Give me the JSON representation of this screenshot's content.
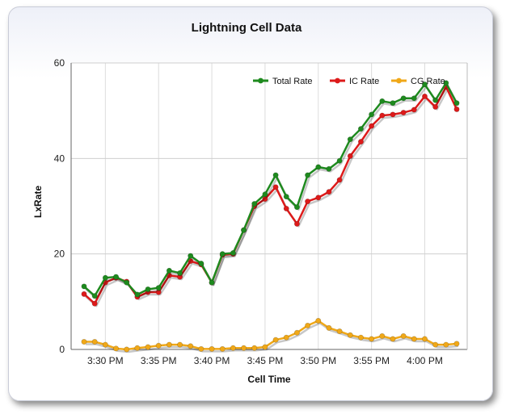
{
  "chart_data": {
    "type": "line",
    "title": "Lightning Cell Data",
    "xlabel": "Cell Time",
    "ylabel": "LxRate",
    "ylim": [
      0,
      60
    ],
    "yticks": [
      "0",
      "20",
      "40",
      "60"
    ],
    "xticks": [
      "3:30 PM",
      "3:35 PM",
      "3:40 PM",
      "3:45 PM",
      "3:50 PM",
      "3:55 PM",
      "4:00 PM"
    ],
    "grid": true,
    "legend_position": "top-right",
    "x": [
      "3:28 PM",
      "3:29 PM",
      "3:30 PM",
      "3:31 PM",
      "3:32 PM",
      "3:33 PM",
      "3:34 PM",
      "3:35 PM",
      "3:36 PM",
      "3:37 PM",
      "3:38 PM",
      "3:39 PM",
      "3:40 PM",
      "3:41 PM",
      "3:42 PM",
      "3:43 PM",
      "3:44 PM",
      "3:45 PM",
      "3:46 PM",
      "3:47 PM",
      "3:48 PM",
      "3:49 PM",
      "3:50 PM",
      "3:51 PM",
      "3:52 PM",
      "3:53 PM",
      "3:54 PM",
      "3:55 PM",
      "3:56 PM",
      "3:57 PM",
      "3:58 PM",
      "3:59 PM",
      "4:00 PM",
      "4:01 PM",
      "4:02 PM",
      "4:03 PM"
    ],
    "series": [
      {
        "name": "Total Rate",
        "color": "#1e8a1e",
        "values": [
          13.2,
          11.2,
          15,
          15.2,
          14,
          11.5,
          12.6,
          12.9,
          16.5,
          16,
          19.6,
          18,
          14,
          20,
          20.2,
          25,
          30.5,
          32.5,
          36.5,
          32,
          29.8,
          36.5,
          38.2,
          37.8,
          39.5,
          44,
          46.2,
          49.2,
          52,
          51.6,
          52.6,
          52.6,
          55.5,
          52.2,
          55.8,
          51.6
        ]
      },
      {
        "name": "IC Rate",
        "color": "#dd1a1a",
        "values": [
          11.6,
          9.6,
          14,
          15,
          14.2,
          11,
          12,
          12,
          15.5,
          15.2,
          18.5,
          17.8,
          14,
          19.8,
          20,
          25,
          30,
          31.5,
          34,
          29.5,
          26.3,
          31,
          31.8,
          33,
          35.5,
          40.5,
          43.5,
          46.8,
          49,
          49.2,
          49.6,
          50.2,
          53,
          50.8,
          55,
          50.3
        ]
      },
      {
        "name": "CG Rate",
        "color": "#f0a818",
        "values": [
          1.6,
          1.6,
          1,
          0.2,
          0,
          0.3,
          0.5,
          0.8,
          1,
          1,
          0.7,
          0.1,
          0.1,
          0.1,
          0.3,
          0.3,
          0.3,
          0.5,
          2,
          2.5,
          3.5,
          5,
          6,
          4.5,
          3.8,
          3,
          2.5,
          2.2,
          2.8,
          2.2,
          2.8,
          2.2,
          2.2,
          1,
          1,
          1.2
        ]
      }
    ]
  }
}
